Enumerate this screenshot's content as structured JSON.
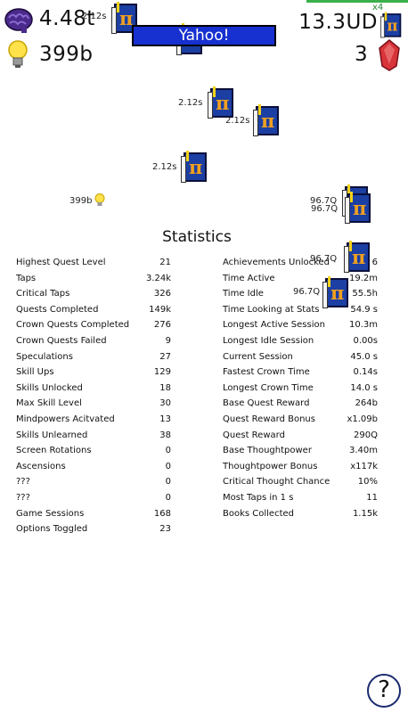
{
  "hud": {
    "thoughtpower": "4.48t",
    "ideas": "399b",
    "currency": "13.3UD",
    "gems": "3",
    "multiplier": "x4"
  },
  "banner": "Yahoo!",
  "floating_labels": {
    "a": "2.12s",
    "b": "2.12s",
    "c": "2.12s",
    "d": "2.12s",
    "e": "399b",
    "f": "96.7Q",
    "g": "96.7Q",
    "h": "96.7Q",
    "i": "96.7Q"
  },
  "stats": {
    "title": "Statistics",
    "left": [
      {
        "label": "Highest Quest Level",
        "value": "21"
      },
      {
        "label": "Taps",
        "value": "3.24k"
      },
      {
        "label": "Critical Taps",
        "value": "326"
      },
      {
        "label": "Quests Completed",
        "value": "149k"
      },
      {
        "label": "Crown Quests Completed",
        "value": "276"
      },
      {
        "label": "Crown Quests Failed",
        "value": "9"
      },
      {
        "label": "Speculations",
        "value": "27"
      },
      {
        "label": "Skill Ups",
        "value": "129"
      },
      {
        "label": "Skills Unlocked",
        "value": "18"
      },
      {
        "label": "Max Skill Level",
        "value": "30"
      },
      {
        "label": "Mindpowers Acitvated",
        "value": "13"
      },
      {
        "label": "Skills Unlearned",
        "value": "38"
      },
      {
        "label": "Screen Rotations",
        "value": "0"
      },
      {
        "label": "Ascensions",
        "value": "0"
      },
      {
        "label": "???",
        "value": "0"
      },
      {
        "label": "???",
        "value": "0"
      },
      {
        "label": "Game Sessions",
        "value": "168"
      },
      {
        "label": "Options Toggled",
        "value": "23"
      }
    ],
    "right": [
      {
        "label": "Achievements Unlocked",
        "value": "6"
      },
      {
        "label": "Time Active",
        "value": "19.2m"
      },
      {
        "label": "Time Idle",
        "value": "55.5h"
      },
      {
        "label": "Time Looking at Stats",
        "value": "54.9 s"
      },
      {
        "label": "Longest Active Session",
        "value": "10.3m"
      },
      {
        "label": "Longest Idle Session",
        "value": "0.00s"
      },
      {
        "label": "Current Session",
        "value": "45.0 s"
      },
      {
        "label": "Fastest Crown Time",
        "value": "0.14s"
      },
      {
        "label": "Longest Crown Time",
        "value": "14.0 s"
      },
      {
        "label": "Base Quest Reward",
        "value": "264b"
      },
      {
        "label": "Quest Reward Bonus",
        "value": "x1.09b"
      },
      {
        "label": "Quest Reward",
        "value": "290Q"
      },
      {
        "label": "Base Thoughtpower",
        "value": "3.40m"
      },
      {
        "label": "Thoughtpower Bonus",
        "value": "x117k"
      },
      {
        "label": "Critical Thought Chance",
        "value": "10%"
      },
      {
        "label": "Most Taps in 1 s",
        "value": "11"
      },
      {
        "label": "Books Collected",
        "value": "1.15k"
      }
    ]
  },
  "help": "?"
}
